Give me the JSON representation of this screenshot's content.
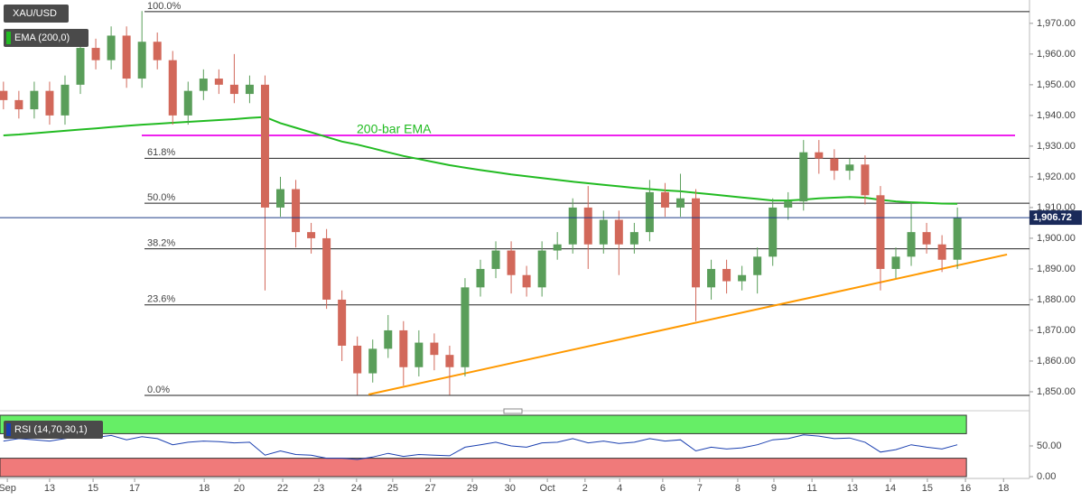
{
  "chart_data": [
    {
      "type": "candlestick",
      "title": "XAU/USD",
      "x": [
        -0.1,
        0.3,
        0.7,
        1.1,
        1.5,
        1.9,
        2.3,
        2.7,
        3.1,
        3.5,
        3.9,
        4.3,
        4.7,
        5.1,
        5.5,
        5.9,
        6.3,
        6.7,
        7.1,
        7.5,
        7.9,
        8.3,
        8.7,
        9.1,
        9.5,
        9.9,
        10.3,
        10.7,
        11.1,
        11.5,
        11.9,
        12.3,
        12.7,
        13.1,
        13.5,
        13.9,
        14.3,
        14.7,
        15.1,
        15.5,
        15.9,
        16.3,
        16.7,
        17.1,
        17.5,
        17.9,
        18.3,
        18.7,
        19.1,
        19.5,
        19.9,
        20.3,
        20.7,
        21.1,
        21.5,
        21.9,
        22.3,
        22.7,
        23.1,
        23.5,
        23.9,
        24.3,
        24.7
      ],
      "open": [
        1948,
        1945,
        1942,
        1948,
        1940,
        1950,
        1962,
        1958,
        1966,
        1952,
        1964,
        1958,
        1940,
        1948,
        1952,
        1950,
        1947,
        1950,
        1910,
        1916,
        1902,
        1900,
        1880,
        1865,
        1856,
        1864,
        1870,
        1858,
        1866,
        1862,
        1858,
        1884,
        1890,
        1896,
        1888,
        1884,
        1896,
        1898,
        1910,
        1898,
        1906,
        1898,
        1902,
        1915,
        1910,
        1913,
        1884,
        1890,
        1886,
        1888,
        1894,
        1910,
        1912,
        1928,
        1926,
        1922,
        1924,
        1914,
        1890,
        1894,
        1902,
        1898,
        1893
      ],
      "high": [
        1951,
        1948,
        1951,
        1951,
        1953,
        1965,
        1965,
        1969,
        1969,
        1974,
        1967,
        1961,
        1951,
        1955,
        1955,
        1960,
        1953,
        1953,
        1920,
        1919,
        1905,
        1903,
        1883,
        1868,
        1867,
        1875,
        1873,
        1870,
        1869,
        1865,
        1887,
        1893,
        1899,
        1899,
        1891,
        1899,
        1902,
        1913,
        1917,
        1909,
        1909,
        1905,
        1919,
        1918,
        1921,
        1916,
        1893,
        1893,
        1891,
        1897,
        1913,
        1915,
        1932,
        1932,
        1929,
        1926,
        1927,
        1917,
        1897,
        1912,
        1905,
        1901,
        1910
      ],
      "low": [
        1942,
        1939,
        1939,
        1937,
        1937,
        1947,
        1955,
        1955,
        1949,
        1949,
        1955,
        1937,
        1937,
        1945,
        1947,
        1944,
        1944,
        1883,
        1907,
        1897,
        1895,
        1877,
        1860,
        1849,
        1853,
        1861,
        1852,
        1855,
        1857,
        1849,
        1855,
        1881,
        1887,
        1882,
        1881,
        1881,
        1893,
        1895,
        1890,
        1895,
        1888,
        1895,
        1899,
        1907,
        1907,
        1873,
        1880,
        1882,
        1883,
        1882,
        1891,
        1906,
        1909,
        1921,
        1919,
        1919,
        1911,
        1883,
        1887,
        1891,
        1895,
        1889,
        1890
      ],
      "close": [
        1945,
        1942,
        1948,
        1940,
        1950,
        1962,
        1958,
        1966,
        1952,
        1964,
        1958,
        1940,
        1948,
        1952,
        1950,
        1947,
        1950,
        1910,
        1916,
        1902,
        1900,
        1880,
        1865,
        1856,
        1864,
        1870,
        1858,
        1866,
        1862,
        1858,
        1884,
        1890,
        1896,
        1888,
        1884,
        1896,
        1898,
        1910,
        1898,
        1906,
        1898,
        1902,
        1915,
        1910,
        1913,
        1884,
        1890,
        1886,
        1888,
        1894,
        1910,
        1912,
        1928,
        1926,
        1922,
        1924,
        1914,
        1890,
        1894,
        1902,
        1898,
        1893,
        1906.72
      ],
      "up_color": "#5a9e5a",
      "down_color": "#d2685a",
      "ema": {
        "name": "EMA (200,0)",
        "color": "#22bb22",
        "values": [
          1933.5,
          1933.8,
          1934.2,
          1934.6,
          1935,
          1935.4,
          1935.8,
          1936.2,
          1936.6,
          1937,
          1937.3,
          1937.6,
          1937.9,
          1938.2,
          1938.5,
          1938.8,
          1939.2,
          1939.5,
          1937.5,
          1936,
          1934.5,
          1933,
          1931.5,
          1930.5,
          1929.3,
          1928,
          1926.8,
          1925.8,
          1924.8,
          1923.8,
          1923,
          1922.2,
          1921.5,
          1920.8,
          1920.2,
          1919.6,
          1919,
          1918.4,
          1917.9,
          1917.4,
          1916.9,
          1916.4,
          1916,
          1915.6,
          1915.3,
          1914.8,
          1914.3,
          1913.8,
          1913.3,
          1912.8,
          1912.3,
          1912.3,
          1912.6,
          1913,
          1913.2,
          1913.4,
          1913.2,
          1912.5,
          1912,
          1911.7,
          1911.5,
          1911.3,
          1911.2
        ]
      },
      "annotation": {
        "text": "200-bar EMA",
        "value": 1933.5,
        "color": "#ee22ee",
        "text_color": "#22bb22"
      },
      "fib_levels": [
        {
          "label": "100.0%",
          "value": 1973.8
        },
        {
          "label": "61.8%",
          "value": 1926.05
        },
        {
          "label": "50.0%",
          "value": 1911.4
        },
        {
          "label": "38.2%",
          "value": 1896.55
        },
        {
          "label": "23.6%",
          "value": 1878.3
        },
        {
          "label": "0.0%",
          "value": 1848.8
        }
      ],
      "trendline": {
        "x": [
          9.39,
          25.99
        ],
        "values": [
          1849.1,
          1894.7
        ],
        "color": "#ff9900"
      },
      "last_price": {
        "value": 1906.72,
        "label": "1,906.72"
      },
      "ylim": [
        1844.7,
        1977.6
      ],
      "yticks": [
        {
          "value": 1850,
          "label": "1,850.00"
        },
        {
          "value": 1860,
          "label": "1,860.00"
        },
        {
          "value": 1870,
          "label": "1,870.00"
        },
        {
          "value": 1880,
          "label": "1,880.00"
        },
        {
          "value": 1890,
          "label": "1,890.00"
        },
        {
          "value": 1900,
          "label": "1,900.00"
        },
        {
          "value": 1910,
          "label": "1,910.00"
        },
        {
          "value": 1920,
          "label": "1,920.00"
        },
        {
          "value": 1930,
          "label": "1,930.00"
        },
        {
          "value": 1940,
          "label": "1,940.00"
        },
        {
          "value": 1950,
          "label": "1,950.00"
        },
        {
          "value": 1960,
          "label": "1,960.00"
        },
        {
          "value": 1970,
          "label": "1,970.00"
        }
      ],
      "xlim": [
        -0.19,
        26.34
      ],
      "xticks": [
        {
          "value": 0,
          "label": "Sep"
        },
        {
          "value": 1.1,
          "label": "13"
        },
        {
          "value": 2.23,
          "label": "15"
        },
        {
          "value": 3.31,
          "label": "17"
        },
        {
          "value": 5.12,
          "label": "18"
        },
        {
          "value": 6.03,
          "label": "20"
        },
        {
          "value": 7.16,
          "label": "22"
        },
        {
          "value": 8.1,
          "label": "23"
        },
        {
          "value": 9.08,
          "label": "24"
        },
        {
          "value": 10.02,
          "label": "25"
        },
        {
          "value": 11.0,
          "label": "27"
        },
        {
          "value": 12.09,
          "label": "29"
        },
        {
          "value": 13.07,
          "label": "30"
        },
        {
          "value": 14.04,
          "label": "Oct"
        },
        {
          "value": 15.02,
          "label": "2"
        },
        {
          "value": 15.92,
          "label": "4"
        },
        {
          "value": 17.04,
          "label": "6"
        },
        {
          "value": 18.0,
          "label": "7"
        },
        {
          "value": 18.99,
          "label": "8"
        },
        {
          "value": 19.93,
          "label": "9"
        },
        {
          "value": 20.92,
          "label": "11"
        },
        {
          "value": 21.97,
          "label": "13"
        },
        {
          "value": 22.96,
          "label": "14"
        },
        {
          "value": 23.92,
          "label": "15"
        },
        {
          "value": 24.91,
          "label": "16"
        },
        {
          "value": 25.9,
          "label": "18"
        }
      ]
    },
    {
      "type": "line",
      "series": [
        {
          "name": "RSI (14,70,30,1)",
          "color": "#1a3fb0",
          "values": [
            58,
            62,
            60,
            58,
            62,
            66,
            64,
            67,
            60,
            65,
            62,
            52,
            56,
            58,
            57,
            55,
            56,
            35,
            42,
            36,
            35,
            30,
            30,
            28,
            32,
            38,
            33,
            36,
            35,
            34,
            48,
            52,
            56,
            50,
            48,
            55,
            56,
            62,
            55,
            58,
            54,
            56,
            62,
            58,
            60,
            42,
            48,
            45,
            47,
            52,
            60,
            62,
            68,
            66,
            62,
            63,
            56,
            40,
            44,
            52,
            48,
            45,
            52
          ]
        }
      ],
      "upper": 70,
      "lower": 30,
      "upper_color": "#66ee66",
      "lower_color": "#f07a7a",
      "ylim": [
        -2.9,
        100
      ],
      "yticks": [
        {
          "value": 50,
          "label": "50.00"
        },
        {
          "value": 0,
          "label": "0.00"
        }
      ]
    }
  ]
}
